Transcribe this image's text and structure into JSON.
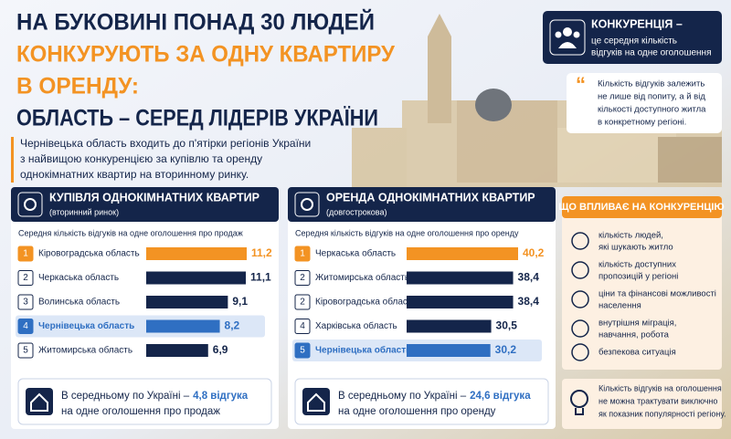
{
  "header": {
    "title_lines": [
      "НА БУКОВИНІ ПОНАД 30 ЛЮДЕЙ",
      "КОНКУРУЮТЬ ЗА ОДНУ КВАРТИРУ",
      "В ОРЕНДУ:",
      "ОБЛАСТЬ – СЕРЕД ЛІДЕРІВ УКРАЇНИ"
    ],
    "intro_lines": [
      "Чернівецька область входить до п'ятірки регіонів України",
      "з найвищою конкуренцією за купівлю та оренду",
      "однокімнатних квартир на вторинному ринку."
    ]
  },
  "definition": {
    "term": "КОНКУРЕНЦІЯ –",
    "lines": [
      "це середня кількість",
      "відгуків на одне оголошення"
    ]
  },
  "quote": {
    "lines": [
      "Кількість відгуків залежить",
      "не лише від попиту, а й від",
      "кількості доступного житла",
      "в конкретному регіоні."
    ]
  },
  "chart_data": [
    {
      "type": "bar",
      "title": "КУПІВЛЯ ОДНОКІМНАТНИХ КВАРТИР",
      "subtitle": "(вторинний ринок)",
      "caption": "Середня кількість відгуків на одне оголошення про продаж",
      "ranks": [
        1,
        2,
        3,
        4,
        5
      ],
      "categories": [
        "Кіровоградська область",
        "Черкаська область",
        "Волинська область",
        "Чернівецька область",
        "Житомирська область"
      ],
      "values": [
        11.2,
        11.1,
        9.1,
        8.2,
        6.9
      ],
      "value_labels": [
        "11,2",
        "11,1",
        "9,1",
        "8,2",
        "6,9"
      ],
      "colors": [
        "#f39323",
        "#14254a",
        "#14254a",
        "#2f6fc2",
        "#14254a"
      ],
      "highlighted": [
        false,
        false,
        false,
        true,
        false
      ],
      "average": {
        "prefix": "В середньому по Україні –",
        "value": "4,8 відгука",
        "line2": "на одне оголошення про продаж"
      }
    },
    {
      "type": "bar",
      "title": "ОРЕНДА ОДНОКІМНАТНИХ КВАРТИР",
      "subtitle": "(довгострокова)",
      "caption": "Середня кількість відгуків на одне оголошення про оренду",
      "ranks": [
        1,
        2,
        2,
        4,
        5
      ],
      "categories": [
        "Черкаська область",
        "Житомирська область",
        "Кіровоградська область",
        "Харківська область",
        "Чернівецька область"
      ],
      "values": [
        40.2,
        38.4,
        38.4,
        30.5,
        30.2
      ],
      "value_labels": [
        "40,2",
        "38,4",
        "38,4",
        "30,5",
        "30,2"
      ],
      "colors": [
        "#f39323",
        "#14254a",
        "#14254a",
        "#14254a",
        "#2f6fc2"
      ],
      "highlighted": [
        false,
        false,
        false,
        false,
        true
      ],
      "average": {
        "prefix": "В середньому по Україні –",
        "value": "24,6 відгука",
        "line2": "на одне оголошення про оренду"
      }
    }
  ],
  "factors": {
    "title": "ЩО ВПЛИВАЄ НА КОНКУРЕНЦІЮ",
    "items": [
      [
        "кількість людей,",
        "які шукають житло"
      ],
      [
        "кількість доступних",
        "пропозицій у регіоні"
      ],
      [
        "ціни та фінансові можливості",
        "населення"
      ],
      [
        "внутрішня міграція,",
        "навчання, робота"
      ],
      [
        "безпекова ситуація"
      ]
    ]
  },
  "note": {
    "lines": [
      "Кількість відгуків на оголошення",
      "не можна трактувати виключно",
      "як показник популярності регіону."
    ]
  }
}
